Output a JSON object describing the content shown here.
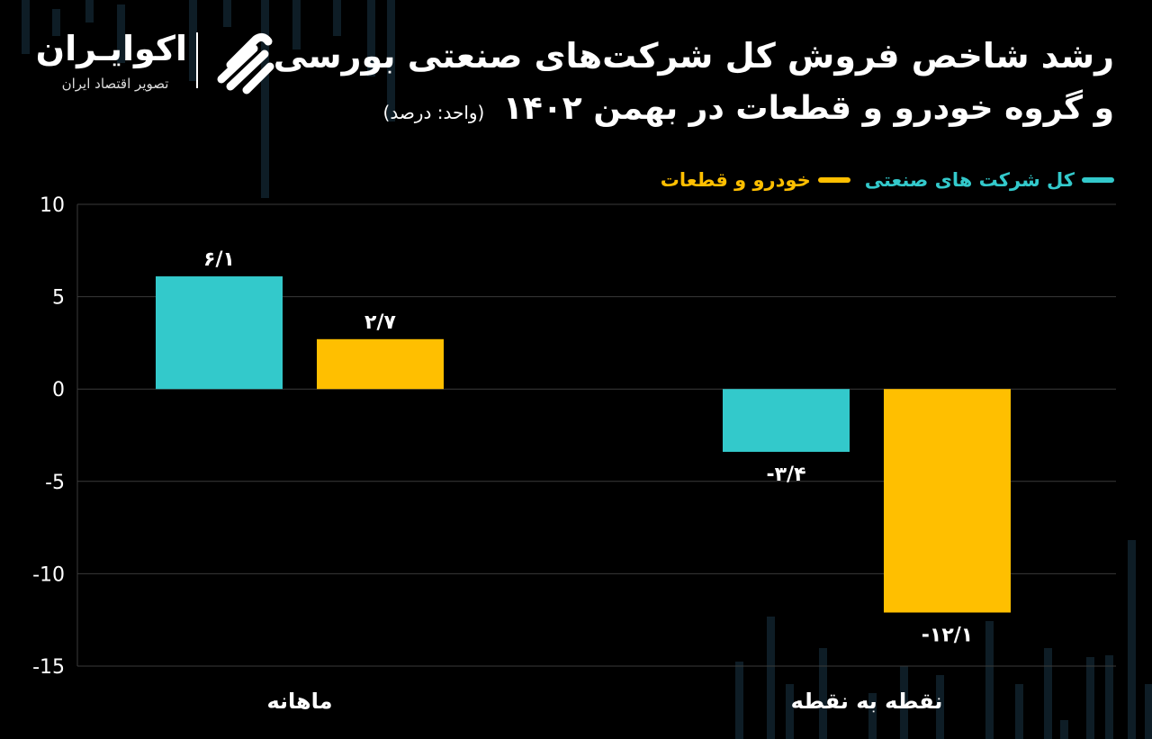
{
  "title": {
    "line1": "رشد شاخص فروش کل شرکت‌های صنعتی بورسی",
    "line2": "و گروه خودرو و قطعات در بهمن ۱۴۰۲",
    "unit": "(واحد: درصد)"
  },
  "logo": {
    "brand": "اکوایـران",
    "tagline": "تصویر اقتصاد ایران"
  },
  "colors": {
    "series1": "#33C9CB",
    "series2": "#FFBF00",
    "grid": "#3a3a3a",
    "background": "#000000"
  },
  "chart_data": {
    "type": "bar",
    "categories": [
      "ماهانه",
      "نقطه به نقطه"
    ],
    "series": [
      {
        "name": "کل شرکت های صنعتی",
        "values": [
          6.1,
          -3.4
        ],
        "labels": [
          "۶/۱",
          "-۳/۴"
        ],
        "color": "#33C9CB"
      },
      {
        "name": "خودرو و قطعات",
        "values": [
          2.7,
          -12.1
        ],
        "labels": [
          "۲/۷",
          "-۱۲/۱"
        ],
        "color": "#FFBF00"
      }
    ],
    "yticks": [
      10,
      5,
      0,
      -5,
      -10,
      -15
    ],
    "ytick_labels": [
      "10",
      "5",
      "0",
      "-5",
      "-10",
      "-15"
    ],
    "ylim": [
      -15,
      10
    ],
    "grid": true,
    "legend_position": "top-right"
  }
}
